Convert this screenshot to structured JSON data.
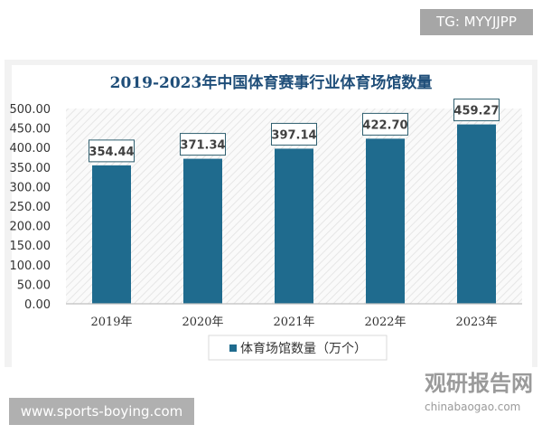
{
  "header_badge": "TG: MYYJJPP",
  "footer_site": "www.sports-boying.com",
  "watermark": {
    "name": "观研报告网",
    "url": "chinabaogao.com"
  },
  "chart_data": {
    "type": "bar",
    "title": "2019-2023年中国体育赛事行业体育场馆数量",
    "categories": [
      "2019年",
      "2020年",
      "2021年",
      "2022年",
      "2023年"
    ],
    "series": [
      {
        "name": "体育场馆数量（万个）",
        "values": [
          354.44,
          371.34,
          397.14,
          422.7,
          459.27
        ],
        "labels": [
          "354.44",
          "371.34",
          "397.14",
          "422.70",
          "459.27"
        ]
      }
    ],
    "yticks": [
      "0.00",
      "50.00",
      "100.00",
      "150.00",
      "200.00",
      "250.00",
      "300.00",
      "350.00",
      "400.00",
      "450.00",
      "500.00"
    ],
    "ylim": [
      0,
      500
    ],
    "color": "#1f6b8e",
    "title_color": "#1f4e79",
    "legend": "bottom",
    "grid": false
  }
}
